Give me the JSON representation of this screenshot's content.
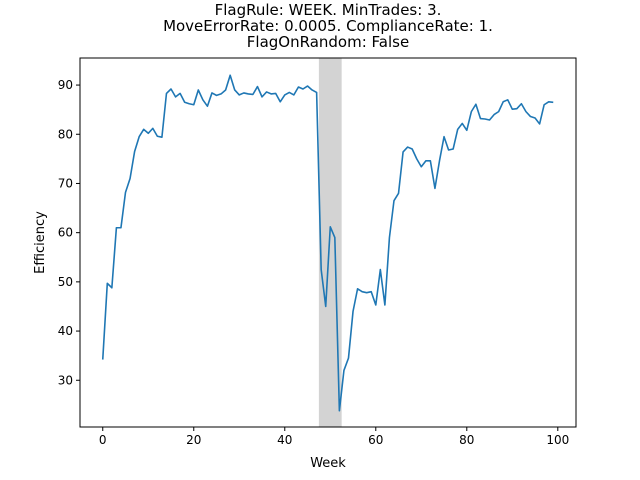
{
  "chart_data": {
    "type": "line",
    "title": [
      "FlagRule: WEEK. MinTrades: 3.",
      "MoveErrorRate: 0.0005. ComplianceRate: 1.",
      "FlagOnRandom: False"
    ],
    "xlabel": "Week",
    "ylabel": "Efficiency",
    "xlim": [
      -5,
      104
    ],
    "ylim": [
      20.5,
      95.5
    ],
    "xticks": [
      0,
      20,
      40,
      60,
      80,
      100
    ],
    "yticks": [
      30,
      40,
      50,
      60,
      70,
      80,
      90
    ],
    "grid": false,
    "shaded_region": {
      "x_start": 47.5,
      "x_end": 52.5,
      "color": "#d3d3d3"
    },
    "series": [
      {
        "color": "#1f77b4",
        "x": [
          0,
          1,
          2,
          3,
          4,
          5,
          6,
          7,
          8,
          9,
          10,
          11,
          12,
          13,
          14,
          15,
          16,
          17,
          18,
          19,
          20,
          21,
          22,
          23,
          24,
          25,
          26,
          27,
          28,
          29,
          30,
          31,
          32,
          33,
          34,
          35,
          36,
          37,
          38,
          39,
          40,
          41,
          42,
          43,
          44,
          45,
          46,
          47,
          48,
          49,
          50,
          51,
          52,
          53,
          54,
          55,
          56,
          57,
          58,
          59,
          60,
          61,
          62,
          63,
          64,
          65,
          66,
          67,
          68,
          69,
          70,
          71,
          72,
          73,
          74,
          75,
          76,
          77,
          78,
          79,
          80,
          81,
          82,
          83,
          84,
          85,
          86,
          87,
          88,
          89,
          90,
          91,
          92,
          93,
          94,
          95,
          96,
          97,
          98,
          99
        ],
        "y": [
          34.2,
          49.7,
          48.8,
          61.0,
          61.0,
          68.2,
          71.0,
          76.5,
          79.5,
          81.0,
          80.2,
          81.2,
          79.6,
          79.4,
          88.3,
          89.2,
          87.6,
          88.3,
          86.5,
          86.2,
          86.0,
          89.0,
          87.0,
          85.7,
          88.4,
          87.9,
          88.2,
          89.0,
          92.0,
          89.0,
          88.0,
          88.4,
          88.2,
          88.1,
          89.7,
          87.6,
          88.6,
          88.2,
          88.3,
          86.6,
          88.0,
          88.5,
          88.0,
          89.6,
          89.2,
          89.8,
          89.0,
          88.5,
          52.5,
          45.0,
          61.2,
          59.0,
          23.8,
          32.0,
          34.5,
          44.0,
          48.6,
          48.0,
          47.8,
          48.0,
          45.3,
          52.5,
          45.3,
          59.0,
          66.5,
          68.0,
          76.4,
          77.4,
          77.0,
          75.0,
          73.4,
          74.6,
          74.6,
          69.0,
          74.6,
          79.5,
          76.8,
          77.0,
          81.0,
          82.2,
          80.8,
          84.6,
          86.1,
          83.2,
          83.1,
          82.9,
          84.0,
          84.6,
          86.6,
          87.0,
          85.1,
          85.2,
          86.2,
          84.6,
          83.6,
          83.3,
          82.1,
          86.0,
          86.6,
          86.5
        ]
      }
    ]
  }
}
